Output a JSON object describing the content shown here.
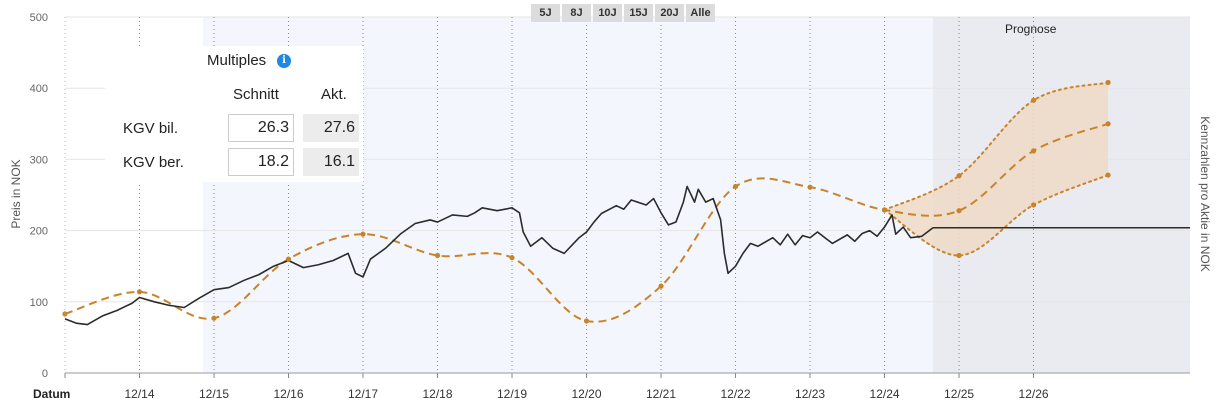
{
  "range_buttons": [
    "5J",
    "8J",
    "10J",
    "15J",
    "20J",
    "Alle"
  ],
  "prognose_label": "Prognose",
  "multiples": {
    "title": "Multiples",
    "col_avg": "Schnitt",
    "col_cur": "Akt.",
    "rows": [
      {
        "label": "KGV bil.",
        "avg": "26.3",
        "cur": "27.6"
      },
      {
        "label": "KGV ber.",
        "avg": "18.2",
        "cur": "16.1"
      }
    ]
  },
  "colors": {
    "price": "#2b2b2b",
    "fair_value": "#c9842a",
    "forecast_band": "#eedbc5",
    "forecast_bg": "#e9ebf0",
    "history_bg": "#f3f7fd"
  },
  "chart_data": {
    "type": "line",
    "xlabel": "Datum",
    "ylabel": "Preis in NOK",
    "ylabel_right": "Kennzahlen pro Aktie in NOK",
    "ylim": [
      0,
      500
    ],
    "yticks": [
      0,
      100,
      200,
      300,
      400,
      500
    ],
    "xlim": [
      2013.0,
      2028.1
    ],
    "xticks": [
      {
        "x": 2014,
        "label": "12/14"
      },
      {
        "x": 2015,
        "label": "12/15"
      },
      {
        "x": 2016,
        "label": "12/16"
      },
      {
        "x": 2017,
        "label": "12/17"
      },
      {
        "x": 2018,
        "label": "12/18"
      },
      {
        "x": 2019,
        "label": "12/19"
      },
      {
        "x": 2020,
        "label": "12/20"
      },
      {
        "x": 2021,
        "label": "12/21"
      },
      {
        "x": 2022,
        "label": "12/22"
      },
      {
        "x": 2023,
        "label": "12/23"
      },
      {
        "x": 2024,
        "label": "12/24"
      },
      {
        "x": 2025,
        "label": "12/25"
      },
      {
        "x": 2026,
        "label": "12/26"
      }
    ],
    "forecast_start": 2024.65,
    "series": [
      {
        "name": "",
        "role": "price",
        "points": [
          [
            2013.0,
            76
          ],
          [
            2013.15,
            70
          ],
          [
            2013.3,
            68
          ],
          [
            2013.5,
            80
          ],
          [
            2013.7,
            88
          ],
          [
            2013.9,
            98
          ],
          [
            2014.0,
            106
          ],
          [
            2014.2,
            100
          ],
          [
            2014.4,
            95
          ],
          [
            2014.6,
            92
          ],
          [
            2014.8,
            105
          ],
          [
            2015.0,
            117
          ],
          [
            2015.2,
            120
          ],
          [
            2015.4,
            130
          ],
          [
            2015.6,
            138
          ],
          [
            2015.8,
            150
          ],
          [
            2016.0,
            158
          ],
          [
            2016.2,
            148
          ],
          [
            2016.4,
            152
          ],
          [
            2016.6,
            158
          ],
          [
            2016.8,
            168
          ],
          [
            2016.9,
            140
          ],
          [
            2017.0,
            135
          ],
          [
            2017.1,
            160
          ],
          [
            2017.3,
            175
          ],
          [
            2017.5,
            195
          ],
          [
            2017.7,
            210
          ],
          [
            2017.9,
            215
          ],
          [
            2018.0,
            212
          ],
          [
            2018.2,
            222
          ],
          [
            2018.4,
            220
          ],
          [
            2018.5,
            225
          ],
          [
            2018.6,
            232
          ],
          [
            2018.8,
            228
          ],
          [
            2019.0,
            232
          ],
          [
            2019.1,
            225
          ],
          [
            2019.15,
            198
          ],
          [
            2019.25,
            178
          ],
          [
            2019.4,
            190
          ],
          [
            2019.55,
            175
          ],
          [
            2019.7,
            168
          ],
          [
            2019.9,
            190
          ],
          [
            2020.0,
            198
          ],
          [
            2020.1,
            212
          ],
          [
            2020.2,
            224
          ],
          [
            2020.4,
            235
          ],
          [
            2020.5,
            230
          ],
          [
            2020.6,
            243
          ],
          [
            2020.8,
            236
          ],
          [
            2020.9,
            245
          ],
          [
            2021.0,
            225
          ],
          [
            2021.1,
            208
          ],
          [
            2021.2,
            212
          ],
          [
            2021.3,
            240
          ],
          [
            2021.35,
            262
          ],
          [
            2021.45,
            240
          ],
          [
            2021.5,
            258
          ],
          [
            2021.6,
            240
          ],
          [
            2021.7,
            245
          ],
          [
            2021.8,
            215
          ],
          [
            2021.85,
            168
          ],
          [
            2021.9,
            140
          ],
          [
            2022.0,
            150
          ],
          [
            2022.1,
            168
          ],
          [
            2022.2,
            182
          ],
          [
            2022.3,
            178
          ],
          [
            2022.5,
            190
          ],
          [
            2022.6,
            180
          ],
          [
            2022.7,
            195
          ],
          [
            2022.8,
            180
          ],
          [
            2022.9,
            193
          ],
          [
            2023.0,
            190
          ],
          [
            2023.1,
            198
          ],
          [
            2023.2,
            190
          ],
          [
            2023.3,
            182
          ],
          [
            2023.5,
            194
          ],
          [
            2023.6,
            185
          ],
          [
            2023.7,
            196
          ],
          [
            2023.8,
            200
          ],
          [
            2023.9,
            192
          ],
          [
            2024.0,
            205
          ],
          [
            2024.1,
            222
          ],
          [
            2024.15,
            195
          ],
          [
            2024.25,
            205
          ],
          [
            2024.35,
            190
          ],
          [
            2024.5,
            192
          ],
          [
            2024.65,
            204
          ]
        ]
      },
      {
        "name": "",
        "role": "price-forecast",
        "points": [
          [
            2024.65,
            204
          ],
          [
            2028.1,
            204
          ]
        ]
      },
      {
        "name": "",
        "role": "fair-value",
        "points": [
          [
            2013.0,
            83
          ],
          [
            2014.0,
            114
          ],
          [
            2015.0,
            77
          ],
          [
            2016.0,
            160
          ],
          [
            2017.0,
            195
          ],
          [
            2018.0,
            165
          ],
          [
            2019.0,
            162
          ],
          [
            2020.0,
            73
          ],
          [
            2021.0,
            122
          ],
          [
            2022.0,
            262
          ],
          [
            2023.0,
            261
          ],
          [
            2024.0,
            229
          ],
          [
            2025.0,
            228
          ],
          [
            2026.0,
            312
          ],
          [
            2027.0,
            350
          ]
        ]
      },
      {
        "name": "",
        "role": "forecast-upper",
        "points": [
          [
            2024.0,
            229
          ],
          [
            2025.0,
            277
          ],
          [
            2026.0,
            383
          ],
          [
            2027.0,
            408
          ]
        ]
      },
      {
        "name": "",
        "role": "forecast-lower",
        "points": [
          [
            2024.0,
            229
          ],
          [
            2025.0,
            165
          ],
          [
            2026.0,
            236
          ],
          [
            2027.0,
            278
          ]
        ]
      }
    ]
  }
}
